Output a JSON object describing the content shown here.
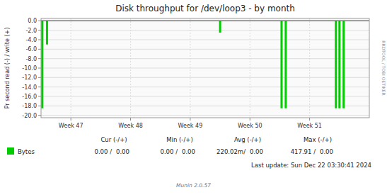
{
  "chart_data": {
    "type": "bar",
    "title": "Disk throughput for /dev/loop3 - by month",
    "y_label": "Pr second read (-) / write (+)",
    "x": [
      0.02,
      0.1,
      3.0,
      4.03,
      4.1,
      4.94,
      5.0,
      5.07
    ],
    "series": [
      {
        "name": "Bytes",
        "color": "#00cc00",
        "values": [
          -18.5,
          -5.0,
          -2.5,
          -18.5,
          -18.5,
          -18.5,
          -18.5,
          -18.5
        ]
      }
    ],
    "xlim": [
      0.0,
      5.5
    ],
    "xticks": [
      {
        "value": 0.5,
        "label": "Week 47"
      },
      {
        "value": 1.5,
        "label": "Week 48"
      },
      {
        "value": 2.5,
        "label": "Week 49"
      },
      {
        "value": 3.5,
        "label": "Week 50"
      },
      {
        "value": 4.5,
        "label": "Week 51"
      }
    ],
    "ylim": [
      -20.5,
      0.5
    ],
    "yticks": [
      {
        "value": 0.0,
        "label": "0.0"
      },
      {
        "value": -2.0,
        "label": "-2.0"
      },
      {
        "value": -4.0,
        "label": "-4.0"
      },
      {
        "value": -6.0,
        "label": "-6.0"
      },
      {
        "value": -8.0,
        "label": "-8.0"
      },
      {
        "value": -10.0,
        "label": "-10.0"
      },
      {
        "value": -12.0,
        "label": "-12.0"
      },
      {
        "value": -14.0,
        "label": "-14.0"
      },
      {
        "value": -16.0,
        "label": "-16.0"
      },
      {
        "value": -18.0,
        "label": "-18.0"
      },
      {
        "value": -20.0,
        "label": "-20.0"
      }
    ],
    "grid": true,
    "legend": "bottom left",
    "stats": [
      {
        "label": "Cur (-/+)",
        "read": {
          "value": 0,
          "label": "0.00 /"
        },
        "write": {
          "value": 0,
          "label": "0.00"
        }
      },
      {
        "label": "Min (-/+)",
        "read": {
          "value": 0,
          "label": "0.00 /"
        },
        "write": {
          "value": 0,
          "label": "0.00"
        }
      },
      {
        "label": "Avg (-/+)",
        "read": {
          "value": 0.22002,
          "label": "220.02m/"
        },
        "write": {
          "value": 0,
          "label": "0.00"
        }
      },
      {
        "label": "Max (-/+)",
        "read": {
          "value": 417.91,
          "label": "417.91 /"
        },
        "write": {
          "value": 0,
          "label": "0.00"
        }
      }
    ],
    "annotations": [
      "RRDTOOL / TOBI OETIKER",
      "Last update: Sun Dec 22 03:30:41 2024",
      "Munin 2.0.57"
    ]
  }
}
